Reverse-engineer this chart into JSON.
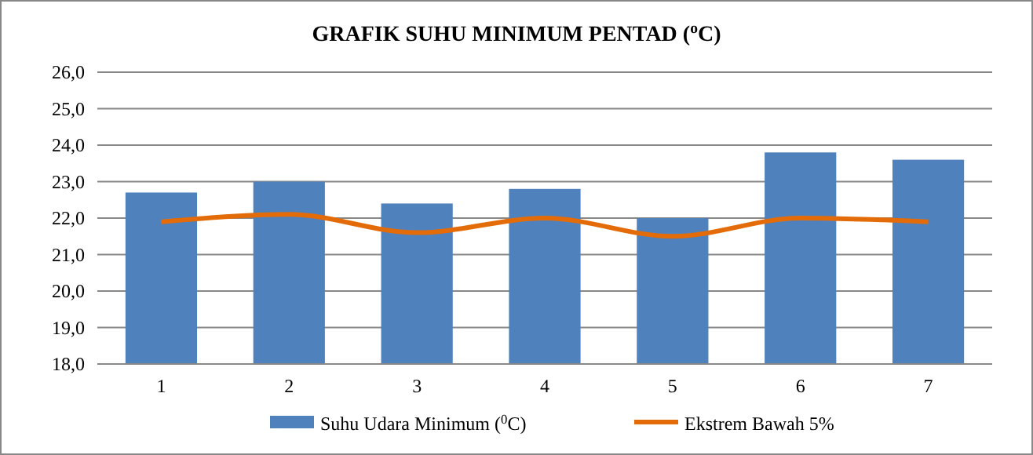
{
  "chart_data": {
    "type": "bar",
    "title": "GRAFIK SUHU MINIMUM PENTAD ($^{o}$C)",
    "categories": [
      "1",
      "2",
      "3",
      "4",
      "5",
      "6",
      "7"
    ],
    "series": [
      {
        "name": "Suhu Udara Minimum ($^{0}$C)",
        "color": "#4f81bd",
        "values": [
          22.7,
          23.0,
          22.4,
          22.8,
          22.0,
          23.8,
          23.6
        ]
      },
      {
        "name": "Ekstrem Bawah  5%",
        "type": "line",
        "color": "#e36c09",
        "values": [
          21.9,
          22.1,
          21.6,
          22.0,
          21.5,
          22.0,
          21.9
        ]
      }
    ],
    "ylim": [
      18,
      26
    ],
    "yticks": [
      {
        "value": 18,
        "label": "18,0"
      },
      {
        "value": 19,
        "label": "19,0"
      },
      {
        "value": 20,
        "label": "20,0"
      },
      {
        "value": 21,
        "label": "21,0"
      },
      {
        "value": 22,
        "label": "22,0"
      },
      {
        "value": 23,
        "label": "23,0"
      },
      {
        "value": 24,
        "label": "24,0"
      },
      {
        "value": 25,
        "label": "25,0"
      },
      {
        "value": 26,
        "label": "26,0"
      }
    ],
    "grid": "y",
    "legend": "bottom",
    "marker": "none",
    "line_style": "solid"
  }
}
